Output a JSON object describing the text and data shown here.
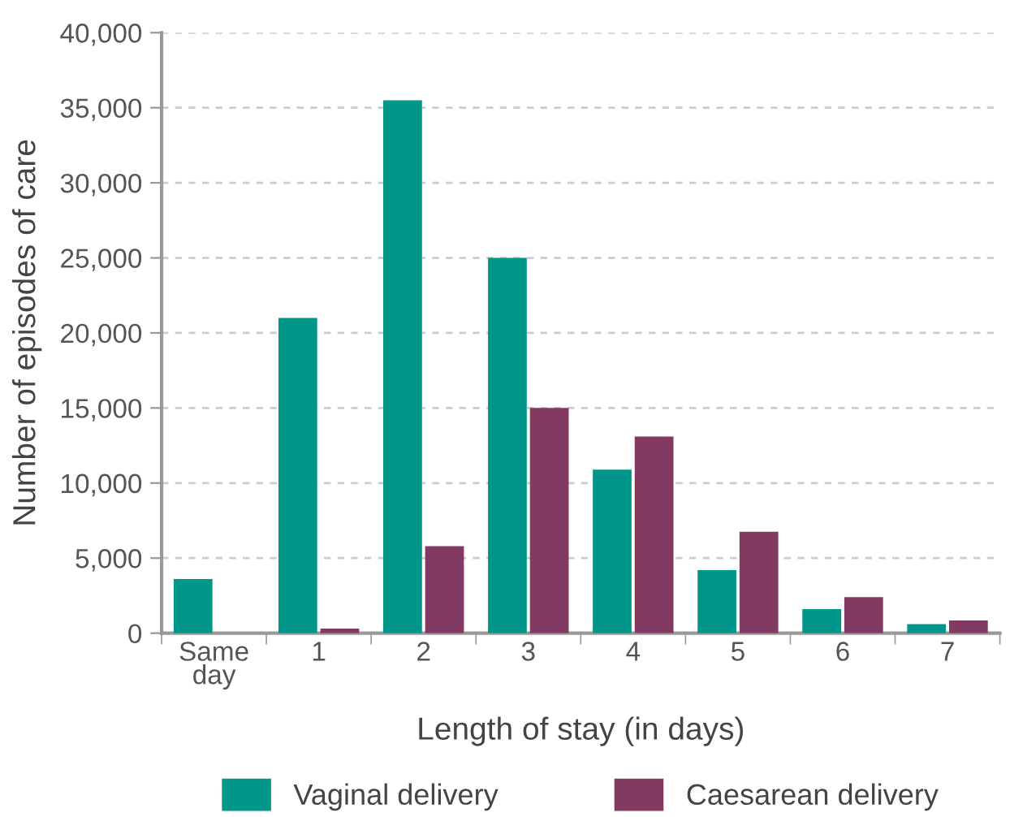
{
  "chart_data": {
    "type": "bar",
    "xlabel": "Length of stay (in days)",
    "ylabel": "Number of episodes of care",
    "categories": [
      "Same\nday",
      "1",
      "2",
      "3",
      "4",
      "5",
      "6",
      "7"
    ],
    "series": [
      {
        "name": "Vaginal delivery",
        "color": "#00968a",
        "values": [
          3600,
          21000,
          35500,
          25000,
          10900,
          4200,
          1600,
          600
        ]
      },
      {
        "name": "Caesarean delivery",
        "color": "#823a62",
        "values": [
          0,
          300,
          5800,
          15000,
          13100,
          6750,
          2400,
          850
        ]
      }
    ],
    "ylim": [
      0,
      40000
    ],
    "yticks": [
      {
        "value": 0,
        "label": "0"
      },
      {
        "value": 5000,
        "label": "5,000"
      },
      {
        "value": 10000,
        "label": "10,000"
      },
      {
        "value": 15000,
        "label": "15,000"
      },
      {
        "value": 20000,
        "label": "20,000"
      },
      {
        "value": 25000,
        "label": "25,000"
      },
      {
        "value": 30000,
        "label": "30,000"
      },
      {
        "value": 35000,
        "label": "35,000"
      },
      {
        "value": 40000,
        "label": "40,000"
      }
    ],
    "grid": "y",
    "legend": "bottom"
  }
}
